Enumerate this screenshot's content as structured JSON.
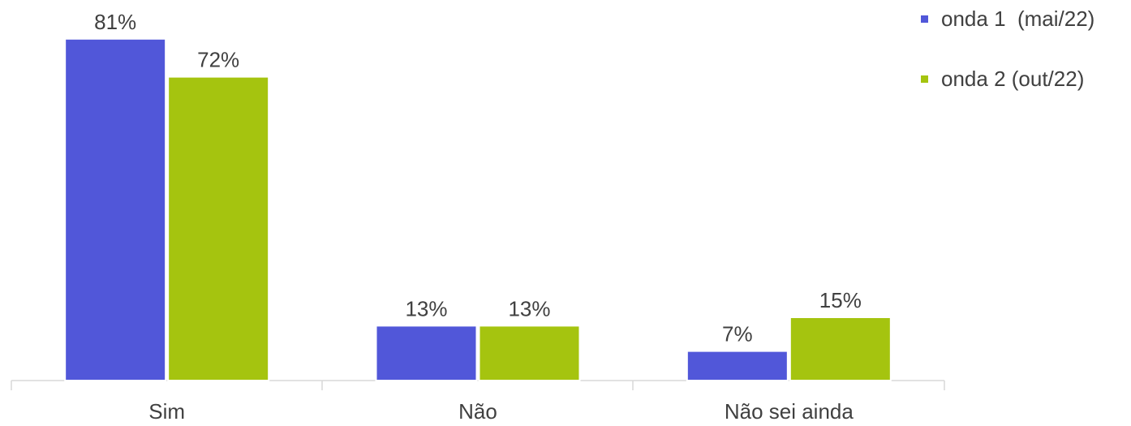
{
  "chart_data": {
    "type": "bar",
    "categories": [
      "Sim",
      "Não",
      "Não sei ainda"
    ],
    "series": [
      {
        "name": "onda 1  (mai/22)",
        "color": "#5157d9",
        "values": [
          81,
          13,
          7
        ],
        "value_labels": [
          "81%",
          "13%",
          "7%"
        ]
      },
      {
        "name": "onda 2 (out/22)",
        "color": "#a5c40f",
        "values": [
          72,
          13,
          15
        ],
        "value_labels": [
          "72%",
          "13%",
          "15%"
        ]
      }
    ],
    "legend": "top-right"
  }
}
